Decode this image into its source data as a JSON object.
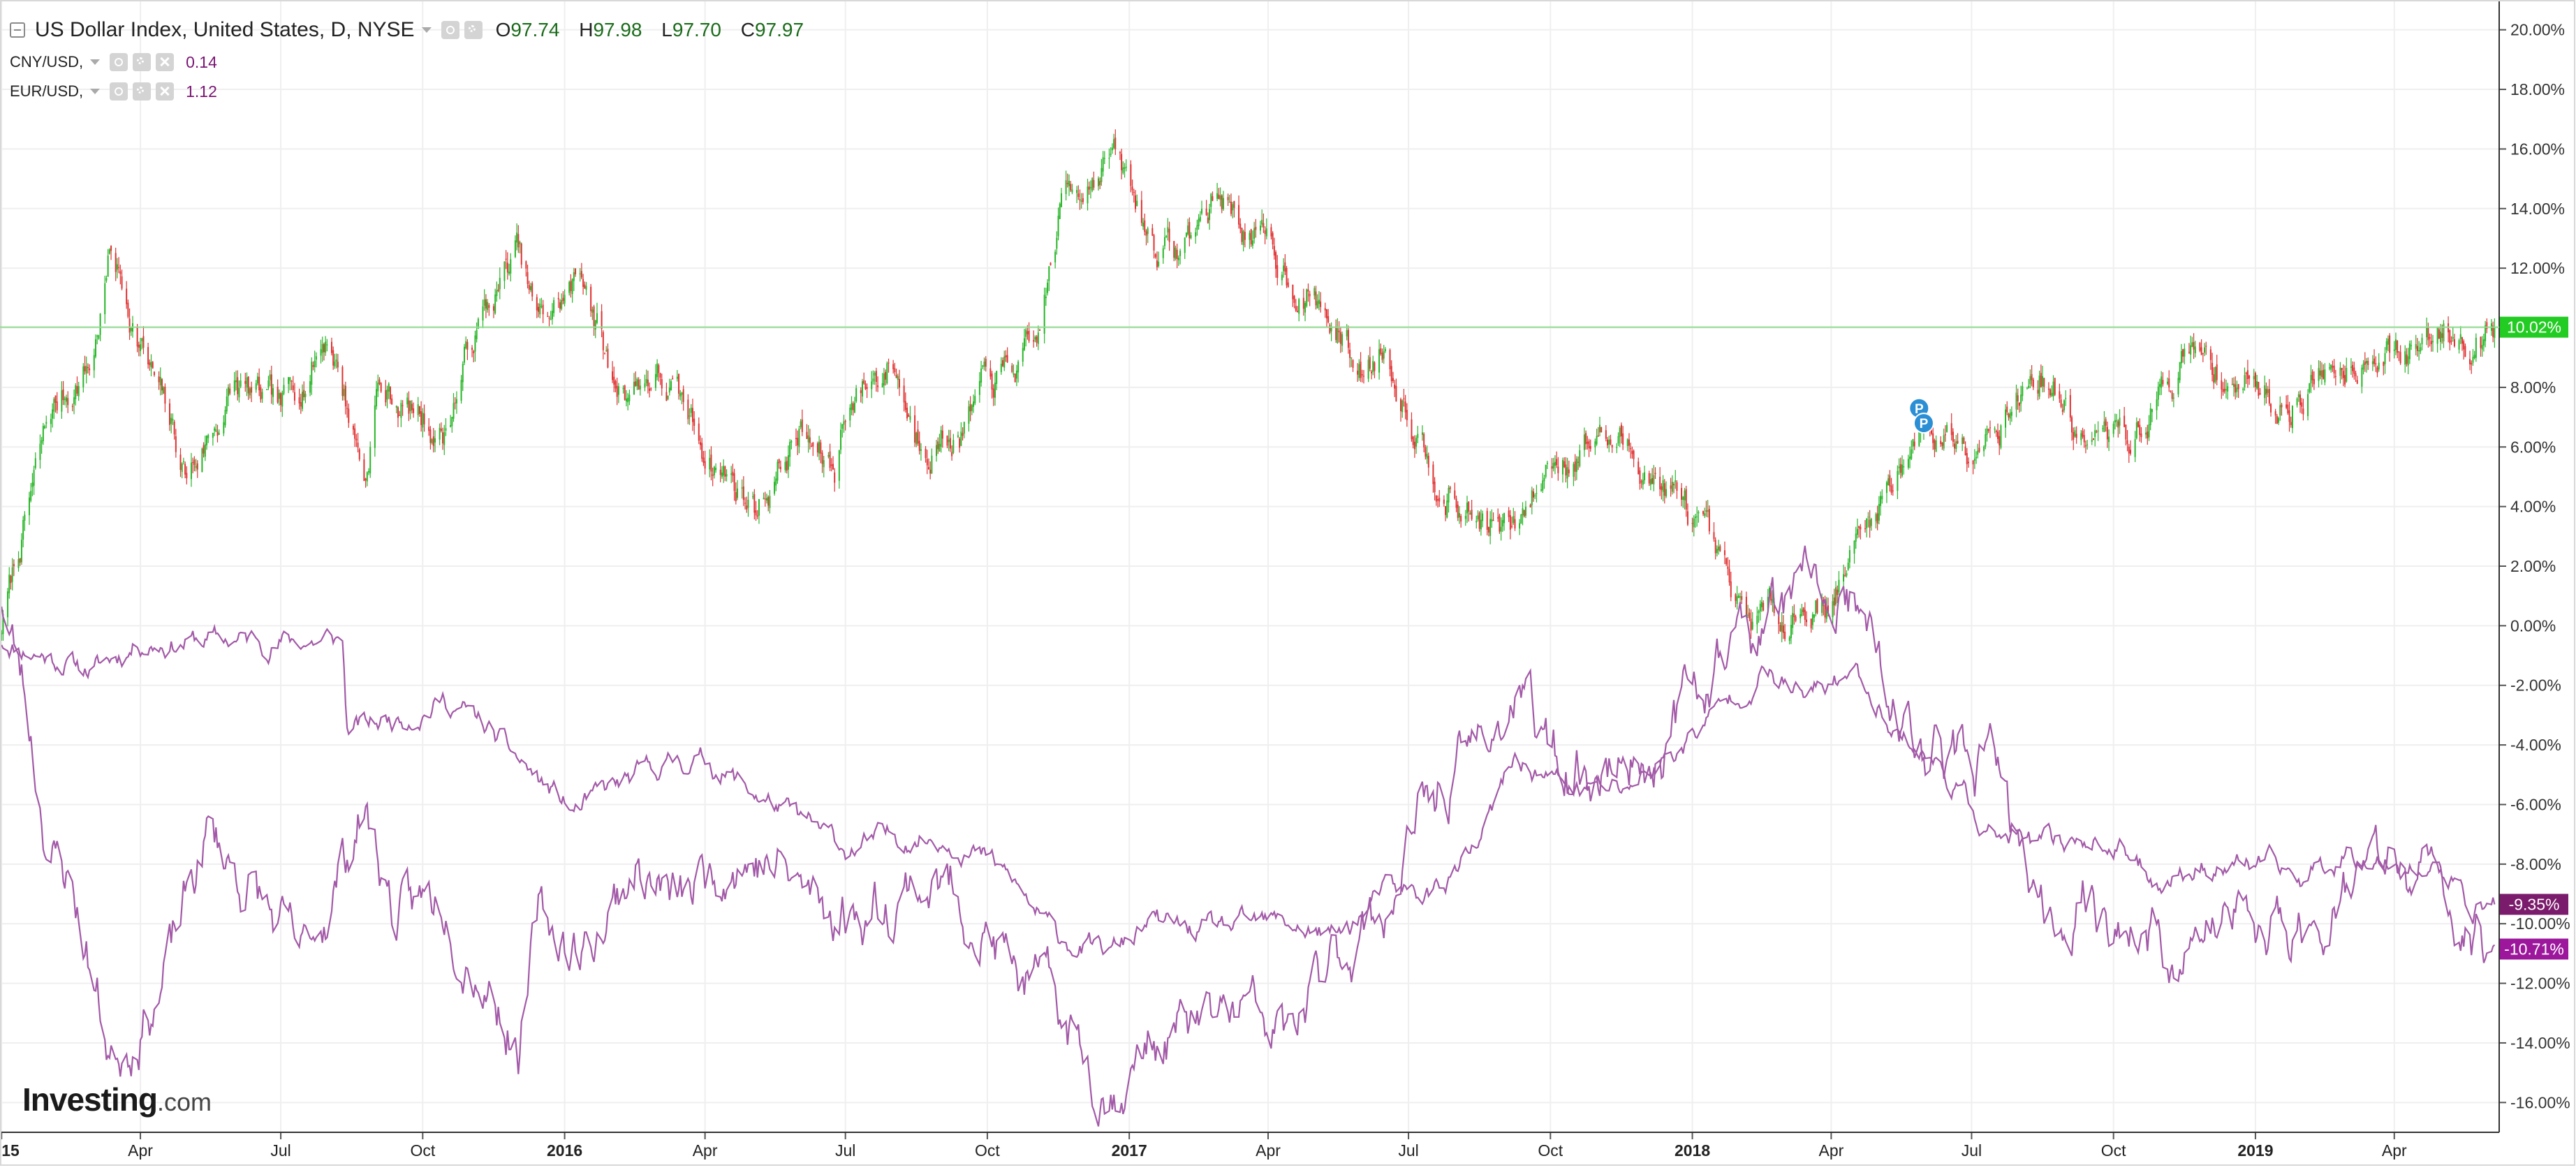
{
  "legend": {
    "main": {
      "title": "US Dollar Index, United States, D, NYSE",
      "open_label": "O",
      "open": "97.74",
      "high_label": "H",
      "high": "97.98",
      "low_label": "L",
      "low": "97.70",
      "close_label": "C",
      "close": "97.97"
    },
    "overlays": [
      {
        "symbol": "CNY/USD,",
        "value": "0.14"
      },
      {
        "symbol": "EUR/USD,",
        "value": "1.12"
      }
    ]
  },
  "logo": {
    "text": "Investing",
    "suffix": ".com"
  },
  "colors": {
    "up": "#26b526",
    "down": "#e03030",
    "overlay": "#a35aa8",
    "last_main": "#22cc22",
    "last_overlay_1": "#7b1b6b",
    "last_overlay_2": "#9c179c",
    "grid": "#efefef"
  },
  "chart_data": {
    "type": "candlestick",
    "ylim": [
      -17,
      21
    ],
    "y_ticks": [
      "20.00%",
      "18.00%",
      "16.00%",
      "14.00%",
      "12.00%",
      "10.00%",
      "8.00%",
      "6.00%",
      "4.00%",
      "2.00%",
      "0.00%",
      "-2.00%",
      "-4.00%",
      "-6.00%",
      "-8.00%",
      "-10.00%",
      "-12.00%",
      "-14.00%",
      "-16.00%"
    ],
    "y_tick_values": [
      20,
      18,
      16,
      14,
      12,
      10,
      8,
      6,
      4,
      2,
      0,
      -2,
      -4,
      -6,
      -8,
      -10,
      -12,
      -14,
      -16
    ],
    "x_range": [
      "2014-12-31",
      "2019-06-08"
    ],
    "x_ticks": [
      {
        "label": "2015",
        "date": "2015-01-01",
        "bold": true
      },
      {
        "label": "Apr",
        "date": "2015-04-01",
        "bold": false
      },
      {
        "label": "Jul",
        "date": "2015-07-01",
        "bold": false
      },
      {
        "label": "Oct",
        "date": "2015-10-01",
        "bold": false
      },
      {
        "label": "2016",
        "date": "2016-01-01",
        "bold": true
      },
      {
        "label": "Apr",
        "date": "2016-04-01",
        "bold": false
      },
      {
        "label": "Jul",
        "date": "2016-07-01",
        "bold": false
      },
      {
        "label": "Oct",
        "date": "2016-10-01",
        "bold": false
      },
      {
        "label": "2017",
        "date": "2017-01-01",
        "bold": true
      },
      {
        "label": "Apr",
        "date": "2017-04-01",
        "bold": false
      },
      {
        "label": "Jul",
        "date": "2017-07-01",
        "bold": false
      },
      {
        "label": "Oct",
        "date": "2017-10-01",
        "bold": false
      },
      {
        "label": "2018",
        "date": "2018-01-01",
        "bold": true
      },
      {
        "label": "Apr",
        "date": "2018-04-01",
        "bold": false
      },
      {
        "label": "Jul",
        "date": "2018-07-01",
        "bold": false
      },
      {
        "label": "Oct",
        "date": "2018-10-01",
        "bold": false
      },
      {
        "label": "2019",
        "date": "2019-01-01",
        "bold": true
      },
      {
        "label": "Apr",
        "date": "2019-04-01",
        "bold": false
      }
    ],
    "series": [
      {
        "name": "US Dollar Index, United States, D, NYSE",
        "style": "candlestick",
        "last_label": "10.02%",
        "last_value": 10.02,
        "points": [
          [
            "2015-01-01",
            0
          ],
          [
            "2015-02-01",
            7
          ],
          [
            "2015-03-01",
            9
          ],
          [
            "2015-03-13",
            12.6
          ],
          [
            "2015-04-01",
            9.5
          ],
          [
            "2015-05-01",
            5
          ],
          [
            "2015-06-01",
            8
          ],
          [
            "2015-07-01",
            7
          ],
          [
            "2015-08-01",
            10
          ],
          [
            "2015-08-25",
            5
          ],
          [
            "2015-09-01",
            8
          ],
          [
            "2015-10-15",
            6.5
          ],
          [
            "2015-11-01",
            9.5
          ],
          [
            "2015-12-01",
            12.5
          ],
          [
            "2015-12-15",
            10
          ],
          [
            "2016-01-15",
            11.8
          ],
          [
            "2016-02-01",
            8
          ],
          [
            "2016-03-01",
            8.5
          ],
          [
            "2016-04-01",
            6
          ],
          [
            "2016-05-03",
            4
          ],
          [
            "2016-06-01",
            6.5
          ],
          [
            "2016-06-24",
            5
          ],
          [
            "2016-07-01",
            7.5
          ],
          [
            "2016-08-01",
            9
          ],
          [
            "2016-08-15",
            6.5
          ],
          [
            "2016-09-15",
            6.5
          ],
          [
            "2016-10-01",
            8
          ],
          [
            "2016-11-01",
            9
          ],
          [
            "2016-11-20",
            14.5
          ],
          [
            "2016-12-20",
            16
          ],
          [
            "2017-01-15",
            13
          ],
          [
            "2017-02-01",
            12.5
          ],
          [
            "2017-03-01",
            14.5
          ],
          [
            "2017-04-01",
            12.5
          ],
          [
            "2017-05-01",
            11
          ],
          [
            "2017-06-01",
            8.5
          ],
          [
            "2017-06-15",
            9.5
          ],
          [
            "2017-07-01",
            7.5
          ],
          [
            "2017-08-01",
            4
          ],
          [
            "2017-09-08",
            3
          ],
          [
            "2017-10-01",
            5.5
          ],
          [
            "2017-11-01",
            6.5
          ],
          [
            "2017-12-01",
            5.5
          ],
          [
            "2018-01-01",
            3.5
          ],
          [
            "2018-02-01",
            0
          ],
          [
            "2018-03-01",
            0.5
          ],
          [
            "2018-04-01",
            1
          ],
          [
            "2018-05-01",
            4
          ],
          [
            "2018-05-25",
            6.5
          ],
          [
            "2018-07-01",
            6.5
          ],
          [
            "2018-08-15",
            8.5
          ],
          [
            "2018-09-15",
            6
          ],
          [
            "2018-10-15",
            6.5
          ],
          [
            "2018-11-15",
            9
          ],
          [
            "2018-12-15",
            8.5
          ],
          [
            "2019-01-15",
            7.5
          ],
          [
            "2019-02-15",
            8.5
          ],
          [
            "2019-03-15",
            9.5
          ],
          [
            "2019-04-15",
            9
          ],
          [
            "2019-05-01",
            10
          ],
          [
            "2019-06-05",
            10.02
          ]
        ]
      },
      {
        "name": "CNY/USD",
        "style": "line",
        "last_label": "-9.35%",
        "last_value": -9.35,
        "points": [
          [
            "2015-01-01",
            -0.5
          ],
          [
            "2015-02-01",
            -1
          ],
          [
            "2015-03-01",
            -1.5
          ],
          [
            "2015-04-01",
            -0.5
          ],
          [
            "2015-06-01",
            -0.5
          ],
          [
            "2015-08-10",
            -0.5
          ],
          [
            "2015-08-13",
            -3.5
          ],
          [
            "2015-09-01",
            -3.3
          ],
          [
            "2015-10-15",
            -2.5
          ],
          [
            "2015-11-01",
            -3
          ],
          [
            "2015-12-01",
            -4.5
          ],
          [
            "2016-01-07",
            -6.3
          ],
          [
            "2016-02-01",
            -5.5
          ],
          [
            "2016-03-15",
            -4.5
          ],
          [
            "2016-04-01",
            -4.5
          ],
          [
            "2016-05-15",
            -6
          ],
          [
            "2016-06-15",
            -7
          ],
          [
            "2016-07-01",
            -7.5
          ],
          [
            "2016-08-15",
            -7
          ],
          [
            "2016-09-15",
            -7.2
          ],
          [
            "2016-10-15",
            -8.5
          ],
          [
            "2016-11-15",
            -10.5
          ],
          [
            "2016-12-20",
            -11
          ],
          [
            "2017-01-15",
            -10
          ],
          [
            "2017-02-15",
            -10.3
          ],
          [
            "2017-04-15",
            -10
          ],
          [
            "2017-05-15",
            -10.5
          ],
          [
            "2017-06-15",
            -9
          ],
          [
            "2017-07-15",
            -9
          ],
          [
            "2017-08-15",
            -7.5
          ],
          [
            "2017-09-08",
            -4.5
          ],
          [
            "2017-10-15",
            -5.5
          ],
          [
            "2017-11-15",
            -5.5
          ],
          [
            "2017-12-15",
            -4.5
          ],
          [
            "2018-01-15",
            -3
          ],
          [
            "2018-02-15",
            -1.5
          ],
          [
            "2018-03-15",
            -2.5
          ],
          [
            "2018-04-15",
            -1.5
          ],
          [
            "2018-05-15",
            -3.5
          ],
          [
            "2018-06-15",
            -5
          ],
          [
            "2018-07-15",
            -7
          ],
          [
            "2018-08-15",
            -7.5
          ],
          [
            "2018-09-15",
            -7
          ],
          [
            "2018-10-31",
            -8.5
          ],
          [
            "2018-11-30",
            -8
          ],
          [
            "2019-01-01",
            -8
          ],
          [
            "2019-02-01",
            -8.5
          ],
          [
            "2019-03-01",
            -7.5
          ],
          [
            "2019-04-15",
            -8
          ],
          [
            "2019-05-01",
            -8.3
          ],
          [
            "2019-05-20",
            -9.5
          ],
          [
            "2019-06-05",
            -9.35
          ]
        ]
      },
      {
        "name": "EUR/USD",
        "style": "line",
        "last_label": "-10.71%",
        "last_value": -10.71,
        "points": [
          [
            "2015-01-01",
            1
          ],
          [
            "2015-01-15",
            -2
          ],
          [
            "2015-02-01",
            -7.5
          ],
          [
            "2015-02-15",
            -8.5
          ],
          [
            "2015-03-13",
            -14.5
          ],
          [
            "2015-04-15",
            -12
          ],
          [
            "2015-05-15",
            -7
          ],
          [
            "2015-06-15",
            -9
          ],
          [
            "2015-07-15",
            -11.5
          ],
          [
            "2015-08-24",
            -6
          ],
          [
            "2015-09-15",
            -10
          ],
          [
            "2015-10-15",
            -9
          ],
          [
            "2015-11-15",
            -12
          ],
          [
            "2015-12-03",
            -14
          ],
          [
            "2015-12-15",
            -10
          ],
          [
            "2016-01-15",
            -11
          ],
          [
            "2016-02-15",
            -8
          ],
          [
            "2016-03-15",
            -9.5
          ],
          [
            "2016-04-15",
            -7.5
          ],
          [
            "2016-05-15",
            -8
          ],
          [
            "2016-06-15",
            -9.5
          ],
          [
            "2016-07-15",
            -9.5
          ],
          [
            "2016-08-15",
            -8.5
          ],
          [
            "2016-09-15",
            -9
          ],
          [
            "2016-10-15",
            -11.5
          ],
          [
            "2016-11-15",
            -13
          ],
          [
            "2016-12-20",
            -15.5
          ],
          [
            "2017-01-15",
            -14
          ],
          [
            "2017-02-15",
            -13.5
          ],
          [
            "2017-03-15",
            -13
          ],
          [
            "2017-04-15",
            -14
          ],
          [
            "2017-05-15",
            -11
          ],
          [
            "2017-06-15",
            -9.5
          ],
          [
            "2017-07-15",
            -6
          ],
          [
            "2017-08-15",
            -4
          ],
          [
            "2017-09-08",
            -2.5
          ],
          [
            "2017-10-15",
            -5
          ],
          [
            "2017-11-15",
            -4.5
          ],
          [
            "2017-12-15",
            -4
          ],
          [
            "2018-01-15",
            -1
          ],
          [
            "2018-02-15",
            0
          ],
          [
            "2018-03-15",
            1
          ],
          [
            "2018-04-15",
            0.5
          ],
          [
            "2018-05-15",
            -3.5
          ],
          [
            "2018-06-15",
            -4.5
          ],
          [
            "2018-07-15",
            -5
          ],
          [
            "2018-08-15",
            -10
          ],
          [
            "2018-09-15",
            -9
          ],
          [
            "2018-10-15",
            -10.5
          ],
          [
            "2018-11-15",
            -11
          ],
          [
            "2018-12-15",
            -10
          ],
          [
            "2019-01-15",
            -10.5
          ],
          [
            "2019-02-15",
            -9.5
          ],
          [
            "2019-03-15",
            -8
          ],
          [
            "2019-04-15",
            -8.5
          ],
          [
            "2019-05-01",
            -9
          ],
          [
            "2019-05-20",
            -10.5
          ],
          [
            "2019-06-05",
            -10.71
          ]
        ]
      }
    ],
    "markers": [
      {
        "label": "P",
        "date": "2018-05-28",
        "value": 7.3
      },
      {
        "label": "P",
        "date": "2018-05-31",
        "value": 6.8
      }
    ],
    "grid": true,
    "legend_position": "top-left"
  }
}
